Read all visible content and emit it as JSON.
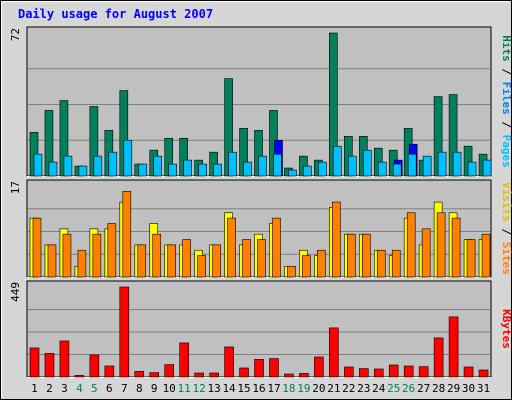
{
  "chart_data": {
    "type": "bar",
    "title": "Daily usage for August 2007",
    "categories": [
      "1",
      "2",
      "3",
      "4",
      "5",
      "6",
      "7",
      "8",
      "9",
      "10",
      "11",
      "12",
      "13",
      "14",
      "15",
      "16",
      "17",
      "18",
      "19",
      "20",
      "21",
      "22",
      "23",
      "24",
      "25",
      "26",
      "27",
      "28",
      "29",
      "30",
      "31"
    ],
    "weekend_days": [
      4,
      5,
      11,
      12,
      18,
      19,
      25,
      26
    ],
    "colors": {
      "hits": "#00805c",
      "files": "#00c0ff",
      "pages": "#0000ff",
      "visits": "#ffff00",
      "sites": "#ff8000",
      "kbytes": "#ff0000",
      "background": "#c0c0c0",
      "frame": "#d6d6d6",
      "title": "#0000ff",
      "weekend_label": "#00805c"
    },
    "panels": [
      {
        "id": "hits-files-pages",
        "ymax_label": "72",
        "ymax": 72,
        "legend": [
          {
            "text": "Hits",
            "color": "#00805c"
          },
          {
            "text": " / ",
            "color": "#000000"
          },
          {
            "text": "Files",
            "color": "#0080ff"
          },
          {
            "text": " / ",
            "color": "#000000"
          },
          {
            "text": "Pages",
            "color": "#00c0ff"
          }
        ],
        "series": [
          {
            "name": "Hits",
            "color": "#00805c",
            "values": [
              22,
              33,
              38,
              5,
              35,
              23,
              43,
              6,
              13,
              19,
              19,
              8,
              12,
              49,
              24,
              23,
              33,
              4,
              10,
              8,
              72,
              20,
              20,
              14,
              13,
              24,
              8,
              40,
              41,
              15,
              11
            ]
          },
          {
            "name": "Files",
            "color": "#00c0ff",
            "values": [
              11,
              7,
              10,
              5,
              10,
              12,
              18,
              6,
              10,
              6,
              8,
              6,
              6,
              12,
              7,
              10,
              11,
              3,
              5,
              7,
              15,
              10,
              13,
              7,
              6,
              11,
              10,
              12,
              12,
              7,
              8
            ]
          },
          {
            "name": "Pages",
            "color": "#0000ff",
            "values": [
              0,
              0,
              0,
              0,
              0,
              0,
              0,
              0,
              0,
              0,
              0,
              0,
              0,
              0,
              0,
              0,
              18,
              0,
              0,
              0,
              0,
              0,
              0,
              0,
              8,
              16,
              0,
              0,
              0,
              0,
              0
            ]
          }
        ]
      },
      {
        "id": "visits-sites",
        "ymax_label": "17",
        "ymax": 17,
        "legend": [
          {
            "text": "Visits",
            "color": "#e0c000"
          },
          {
            "text": " / ",
            "color": "#000000"
          },
          {
            "text": "Sites",
            "color": "#ff8000"
          }
        ],
        "series": [
          {
            "name": "Visits",
            "color": "#ffff00",
            "values": [
              11,
              6,
              9,
              2,
              9,
              9,
              14,
              6,
              10,
              6,
              6,
              5,
              6,
              12,
              6,
              8,
              10,
              2,
              5,
              4,
              13,
              8,
              8,
              5,
              4,
              11,
              6,
              14,
              12,
              7,
              7
            ]
          },
          {
            "name": "Sites",
            "color": "#ff8000",
            "values": [
              11,
              6,
              8,
              5,
              8,
              10,
              16,
              6,
              8,
              6,
              7,
              4,
              6,
              11,
              7,
              7,
              11,
              2,
              4,
              5,
              14,
              8,
              8,
              5,
              5,
              12,
              9,
              12,
              11,
              7,
              8
            ]
          }
        ]
      },
      {
        "id": "kbytes",
        "ymax_label": "449",
        "ymax": 449,
        "legend": [
          {
            "text": "KBytes",
            "color": "#ff0000"
          }
        ],
        "series": [
          {
            "name": "KBytes",
            "color": "#ff0000",
            "values": [
              145,
              118,
              180,
              8,
              110,
              55,
              449,
              28,
              22,
              62,
              170,
              20,
              20,
              150,
              45,
              88,
              92,
              15,
              18,
              100,
              245,
              50,
              42,
              40,
              60,
              55,
              52,
              195,
              300,
              50,
              35
            ]
          }
        ]
      }
    ]
  }
}
